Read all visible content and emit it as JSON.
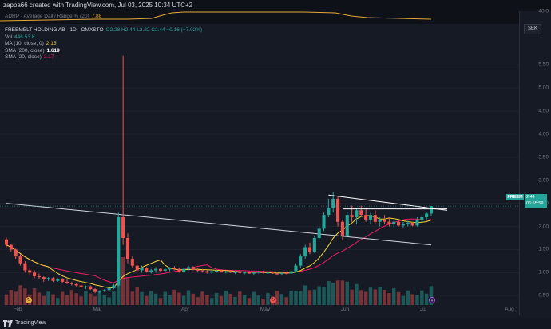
{
  "header": {
    "attribution": "zappa66 created with TradingView.com, Jul 03, 2025 10:34 UTC+2"
  },
  "indicator_pane": {
    "label": "ADRP · Average Daily Range % (20)",
    "value": "7.88",
    "axis_value": "40.0"
  },
  "legend": {
    "title": "FREEMELT HOLDING AB · 1D · OMXSTO",
    "ohlc": "O2.28 H2.44 L2.22 C2.44 +0.16 (+7.02%)",
    "vol_label": "Vol",
    "vol_value": "446.53 K",
    "ma_label": "MA (10, close, 0)",
    "ma_value": "2.15",
    "sma200_label": "SMA (200, close)",
    "sma200_value": "1.619",
    "sma20_label": "SMA (20, close)",
    "sma20_value": "2.17"
  },
  "currency_button": "SEK",
  "price_tag": {
    "symbol": "FREEM",
    "price": "2.44",
    "countdown": "06:55:59"
  },
  "footer": {
    "brand": "TradingView"
  },
  "chart_data": {
    "type": "candlestick",
    "price_axis_ticks": [
      "5.50",
      "5.00",
      "4.50",
      "4.00",
      "3.50",
      "3.00",
      "2.50",
      "2.00",
      "1.50",
      "1.00",
      "0.50"
    ],
    "time_axis_labels": [
      "Feb",
      "Mar",
      "Apr",
      "May",
      "Jun",
      "Jul",
      "Aug"
    ],
    "ylim": [
      0.4,
      5.8
    ],
    "colors": {
      "up": "#26a69a",
      "down": "#ef5350",
      "ma10": "#f5d33a",
      "sma200": "#d1d4dc",
      "sma20": "#e91e63",
      "adrp": "#e5a93a"
    },
    "candles": [
      [
        1.72,
        1.76,
        1.55,
        1.6
      ],
      [
        1.6,
        1.62,
        1.45,
        1.5
      ],
      [
        1.5,
        1.52,
        1.3,
        1.35
      ],
      [
        1.35,
        1.4,
        1.15,
        1.2
      ],
      [
        1.2,
        1.25,
        1.0,
        1.05
      ],
      [
        1.05,
        1.1,
        0.95,
        1.0
      ],
      [
        1.0,
        1.05,
        0.88,
        0.92
      ],
      [
        0.92,
        0.98,
        0.85,
        0.9
      ],
      [
        0.9,
        0.92,
        0.8,
        0.85
      ],
      [
        0.85,
        0.9,
        0.82,
        0.88
      ],
      [
        0.88,
        0.9,
        0.8,
        0.82
      ],
      [
        0.82,
        0.88,
        0.8,
        0.86
      ],
      [
        0.86,
        0.88,
        0.78,
        0.8
      ],
      [
        0.8,
        0.85,
        0.75,
        0.78
      ],
      [
        0.78,
        0.8,
        0.72,
        0.75
      ],
      [
        0.75,
        0.78,
        0.7,
        0.72
      ],
      [
        0.72,
        0.74,
        0.66,
        0.68
      ],
      [
        0.68,
        0.72,
        0.64,
        0.7
      ],
      [
        0.7,
        0.72,
        0.62,
        0.64
      ],
      [
        0.64,
        0.66,
        0.55,
        0.58
      ],
      [
        0.58,
        0.62,
        0.55,
        0.6
      ],
      [
        0.6,
        0.64,
        0.58,
        0.62
      ],
      [
        0.62,
        0.7,
        0.6,
        0.66
      ],
      [
        0.66,
        0.75,
        0.64,
        0.72
      ],
      [
        0.72,
        2.3,
        0.7,
        2.2
      ],
      [
        2.2,
        5.7,
        1.6,
        1.75
      ],
      [
        1.75,
        1.85,
        1.2,
        1.3
      ],
      [
        1.3,
        1.35,
        1.1,
        1.15
      ],
      [
        1.15,
        1.2,
        1.0,
        1.05
      ],
      [
        1.05,
        1.15,
        1.0,
        1.1
      ],
      [
        1.1,
        1.12,
        1.0,
        1.02
      ],
      [
        1.02,
        1.08,
        0.98,
        1.05
      ],
      [
        1.05,
        1.12,
        1.0,
        1.08
      ],
      [
        1.08,
        1.1,
        1.02,
        1.04
      ],
      [
        1.04,
        1.1,
        1.0,
        1.07
      ],
      [
        1.07,
        1.12,
        1.03,
        1.1
      ],
      [
        1.1,
        1.14,
        1.05,
        1.08
      ],
      [
        1.08,
        1.1,
        1.0,
        1.02
      ],
      [
        1.02,
        1.1,
        1.0,
        1.08
      ],
      [
        1.08,
        1.15,
        1.05,
        1.12
      ],
      [
        1.12,
        1.14,
        1.05,
        1.06
      ],
      [
        1.06,
        1.1,
        1.02,
        1.05
      ],
      [
        1.05,
        1.08,
        1.0,
        1.03
      ],
      [
        1.03,
        1.06,
        0.98,
        1.0
      ],
      [
        1.0,
        1.05,
        0.97,
        1.03
      ],
      [
        1.03,
        1.06,
        1.0,
        1.04
      ],
      [
        1.04,
        1.06,
        1.0,
        1.01
      ],
      [
        1.01,
        1.04,
        0.98,
        1.02
      ],
      [
        1.02,
        1.05,
        0.99,
        1.0
      ],
      [
        1.0,
        1.03,
        0.97,
        1.01
      ],
      [
        1.01,
        1.03,
        0.98,
        0.99
      ],
      [
        0.99,
        1.02,
        0.96,
        1.0
      ],
      [
        1.0,
        1.02,
        0.97,
        0.98
      ],
      [
        0.98,
        1.02,
        0.95,
        1.0
      ],
      [
        1.0,
        1.03,
        0.98,
        1.01
      ],
      [
        1.01,
        1.04,
        0.98,
        0.99
      ],
      [
        0.99,
        1.02,
        0.96,
        1.0
      ],
      [
        1.0,
        1.02,
        0.97,
        0.98
      ],
      [
        0.98,
        1.0,
        0.95,
        0.97
      ],
      [
        0.97,
        1.0,
        0.95,
        0.99
      ],
      [
        0.99,
        1.01,
        0.96,
        0.98
      ],
      [
        0.98,
        1.05,
        0.97,
        1.03
      ],
      [
        1.03,
        1.2,
        1.0,
        1.15
      ],
      [
        1.15,
        1.4,
        1.1,
        1.35
      ],
      [
        1.35,
        1.6,
        1.3,
        1.55
      ],
      [
        1.55,
        1.65,
        1.4,
        1.45
      ],
      [
        1.45,
        1.8,
        1.42,
        1.75
      ],
      [
        1.75,
        2.0,
        1.7,
        1.95
      ],
      [
        1.95,
        2.3,
        1.9,
        2.25
      ],
      [
        2.25,
        2.6,
        2.2,
        2.4
      ],
      [
        2.4,
        2.75,
        2.3,
        2.6
      ],
      [
        2.6,
        2.65,
        2.0,
        2.1
      ],
      [
        2.1,
        2.15,
        1.7,
        1.8
      ],
      [
        1.8,
        2.3,
        1.78,
        2.25
      ],
      [
        2.25,
        2.45,
        2.1,
        2.2
      ],
      [
        2.2,
        2.4,
        2.05,
        2.35
      ],
      [
        2.35,
        2.45,
        2.2,
        2.25
      ],
      [
        2.25,
        2.4,
        2.1,
        2.15
      ],
      [
        2.15,
        2.3,
        2.05,
        2.25
      ],
      [
        2.25,
        2.35,
        2.05,
        2.1
      ],
      [
        2.1,
        2.2,
        2.0,
        2.15
      ],
      [
        2.15,
        2.25,
        2.05,
        2.1
      ],
      [
        2.1,
        2.2,
        2.0,
        2.05
      ],
      [
        2.05,
        2.15,
        1.98,
        2.1
      ],
      [
        2.1,
        2.15,
        2.0,
        2.02
      ],
      [
        2.02,
        2.1,
        1.98,
        2.05
      ],
      [
        2.05,
        2.12,
        2.0,
        2.08
      ],
      [
        2.08,
        2.1,
        2.0,
        2.02
      ],
      [
        2.02,
        2.2,
        2.0,
        2.15
      ],
      [
        2.15,
        2.25,
        2.1,
        2.2
      ],
      [
        2.2,
        2.3,
        2.15,
        2.28
      ],
      [
        2.28,
        2.44,
        2.22,
        2.44
      ]
    ]
  }
}
